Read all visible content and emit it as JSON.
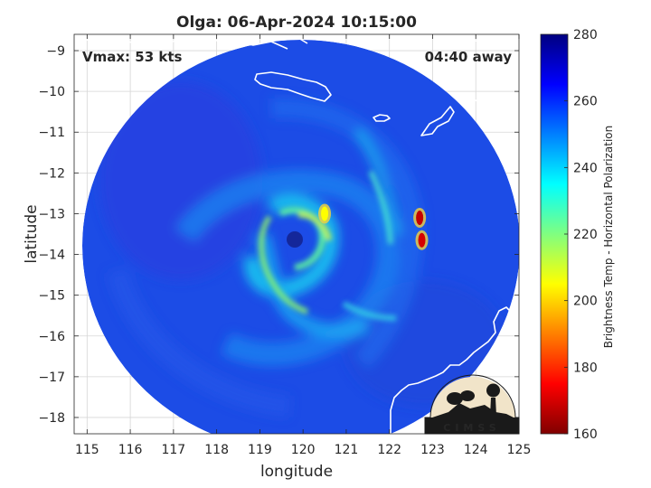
{
  "chart_data": {
    "type": "heatmap",
    "title": "Olga: 06-Apr-2024 10:15:00",
    "xlabel": "longitude",
    "ylabel": "latitude",
    "xlim": [
      114.7,
      125
    ],
    "ylim": [
      -18.4,
      -8.6
    ],
    "x_ticks": [
      115,
      116,
      117,
      118,
      119,
      120,
      121,
      122,
      123,
      124,
      125
    ],
    "y_ticks": [
      -9,
      -10,
      -11,
      -12,
      -13,
      -14,
      -15,
      -16,
      -17,
      -18
    ],
    "grid": true,
    "annotations": {
      "vmax": "Vmax: 53 kts",
      "time_away": "04:40 away"
    },
    "colorbar": {
      "label": "Brightness Temp - Horizontal Polarization",
      "range": [
        160,
        280
      ],
      "ticks": [
        160,
        180,
        200,
        220,
        240,
        260,
        280
      ],
      "colormap": "jet"
    },
    "storm_center": {
      "lon": 119.9,
      "lat": -13.5
    },
    "swath_center": {
      "lon": 119.8,
      "lat": -13.3
    },
    "cold_cells": [
      {
        "lon": 122.7,
        "lat": -13.1,
        "value": 168
      },
      {
        "lon": 122.75,
        "lat": -13.65,
        "value": 170
      },
      {
        "lon": 120.5,
        "lat": -13.0,
        "value": 205
      }
    ],
    "background_value": 264
  },
  "logo": {
    "text": "CIMSS"
  },
  "colors": {
    "background": "#ffffff",
    "ocean_tb": "#1c4ce6",
    "coastline": "#ffffff",
    "grid": "#c8c8c8",
    "axis_text": "#262626"
  }
}
